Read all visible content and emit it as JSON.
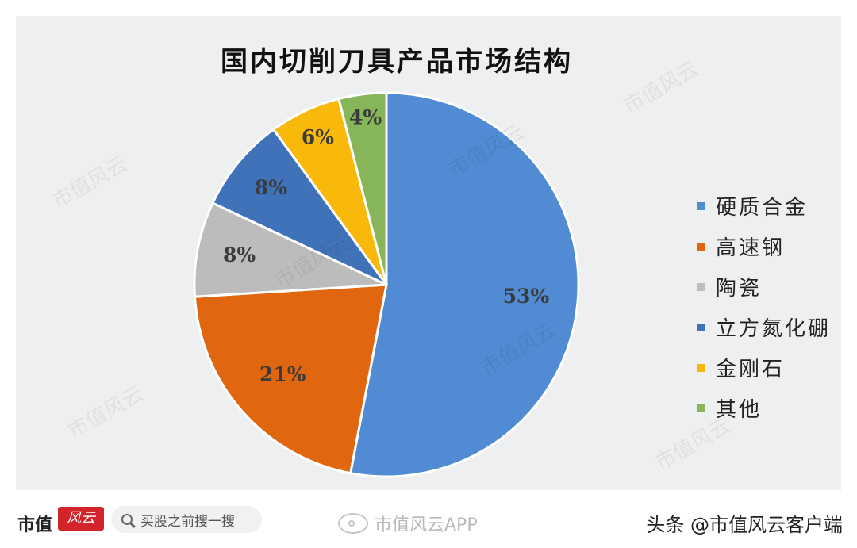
{
  "chart_data": {
    "type": "pie",
    "title": "国内切削刀具产品市场结构",
    "categories": [
      "硬质合金",
      "高速钢",
      "陶瓷",
      "立方氮化硼",
      "金刚石",
      "其他"
    ],
    "values": [
      53,
      21,
      8,
      8,
      6,
      4
    ],
    "value_labels": [
      "53%",
      "21%",
      "8%",
      "8%",
      "6%",
      "4%"
    ],
    "colors": [
      "#508bd3",
      "#e0660f",
      "#bcbcbc",
      "#3f72b8",
      "#f8b90a",
      "#87b55a"
    ],
    "start_angle_deg": 0,
    "direction": "clockwise",
    "legend_position": "right"
  },
  "watermark": {
    "text": "市值风云"
  },
  "footer": {
    "brand": "市值",
    "brand_mark": "风云",
    "search_placeholder": "买股之前搜一搜",
    "weibo_text": "市值风云APP",
    "toutiao_text": "头条 @市值风云客户端"
  }
}
